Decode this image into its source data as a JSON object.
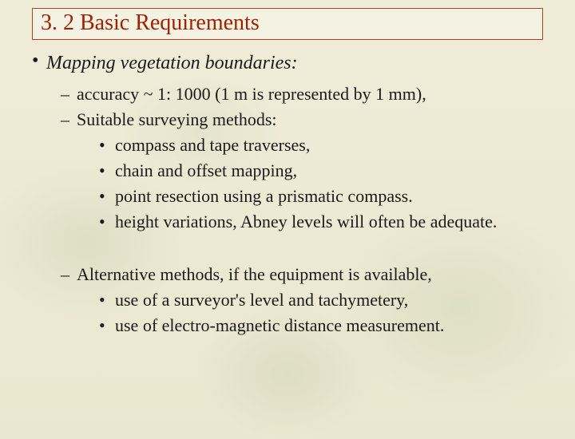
{
  "title": "3. 2  Basic Requirements",
  "main_bullet": "Mapping vegetation boundaries:",
  "group1": {
    "d1": "accuracy  ~ 1: 1000 (1 m is represented by 1 mm),",
    "d2": "Suitable surveying methods:",
    "d2_items": {
      "i1": "compass and tape traverses,",
      "i2": "chain and offset mapping,",
      "i3": "point resection using a prismatic compass.",
      "i4": "height variations,  Abney levels will often be adequate."
    }
  },
  "group2": {
    "d1": "Alternative methods, if the equipment is available,",
    "d1_items": {
      "i1": "use of a surveyor's level and tachymetery,",
      "i2": "use of electro-magnetic distance measurement."
    }
  },
  "colors": {
    "title_text": "#a02000",
    "title_border": "#b04020",
    "body_text": "#1a1a1a",
    "bg_tint": "#e8e4cc"
  },
  "fonts": {
    "title_size_pt": 21,
    "main_item_size_pt": 18,
    "body_size_pt": 16,
    "family": "Times New Roman"
  }
}
